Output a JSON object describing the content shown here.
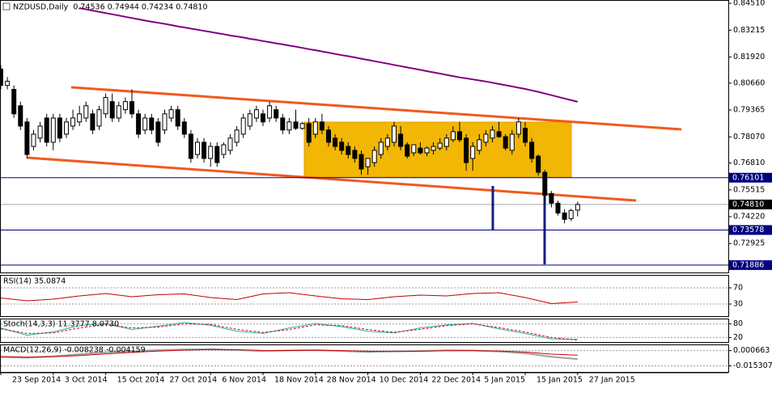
{
  "chart_data": [
    {
      "type": "candlestick",
      "title": "NZDUSD,Daily  0.74536 0.74944 0.74234 0.74810",
      "categories": [
        "23 Sep 2014",
        null,
        null,
        null,
        null,
        null,
        null,
        null,
        "3 Oct 2014",
        null,
        null,
        null,
        null,
        null,
        null,
        null,
        "15 Oct 2014",
        null,
        null,
        null,
        null,
        null,
        null,
        null,
        "27 Oct 2014",
        null,
        null,
        null,
        null,
        null,
        null,
        null,
        "6 Nov 2014",
        null,
        null,
        null,
        null,
        null,
        null,
        null,
        "18 Nov 2014",
        null,
        null,
        null,
        null,
        null,
        null,
        null,
        "28 Nov 2014",
        null,
        null,
        null,
        null,
        null,
        null,
        null,
        "10 Dec 2014",
        null,
        null,
        null,
        null,
        null,
        null,
        null,
        "22 Dec 2014",
        null,
        null,
        null,
        null,
        null,
        null,
        null,
        "5 Jan 2015",
        null,
        null,
        null,
        null,
        null,
        null,
        null,
        "15 Jan 2015",
        null,
        null,
        null,
        null,
        null,
        null,
        null,
        "27 Jan 2015"
      ],
      "open": [
        0.8134,
        0.8055,
        0.8036,
        0.7957,
        0.7879,
        0.7761,
        0.7801,
        0.7898,
        0.7781,
        0.7898,
        0.782,
        0.7859,
        0.7879,
        0.7898,
        0.7918,
        0.7859,
        0.7918,
        0.7977,
        0.7898,
        0.7938,
        0.7977,
        0.7918,
        0.784,
        0.7898,
        0.7879,
        0.784,
        0.7898,
        0.7938,
        0.7879,
        0.782,
        0.7722,
        0.7781,
        0.7703,
        0.7761,
        0.7722,
        0.7742,
        0.7781,
        0.782,
        0.7859,
        0.7898,
        0.7918,
        0.7898,
        0.7938,
        0.7898,
        0.784,
        0.7879,
        0.7848,
        0.7871,
        0.782,
        0.7879,
        0.784,
        0.7801,
        0.7781,
        0.7761,
        0.7742,
        0.7722,
        0.7663,
        0.7683,
        0.7722,
        0.7761,
        0.7781,
        0.782,
        0.7769,
        0.773,
        0.7753,
        0.773,
        0.7742,
        0.7753,
        0.7761,
        0.7793,
        0.7832,
        0.7801,
        0.7703,
        0.7742,
        0.7781,
        0.7801,
        0.7832,
        0.7808,
        0.7742,
        0.782,
        0.7848,
        0.7781,
        0.7714,
        0.7636,
        0.7534,
        0.7487,
        0.744,
        0.7413,
        0.74536
      ],
      "high": [
        0.8153,
        0.8095,
        0.8055,
        0.7977,
        0.7898,
        0.784,
        0.7879,
        0.7918,
        0.7918,
        0.7918,
        0.7898,
        0.7938,
        0.7957,
        0.7977,
        0.7938,
        0.7957,
        0.8016,
        0.8016,
        0.7977,
        0.7997,
        0.8036,
        0.7938,
        0.7918,
        0.7918,
        0.7898,
        0.7938,
        0.7957,
        0.7957,
        0.7898,
        0.784,
        0.7801,
        0.7801,
        0.7781,
        0.7781,
        0.7781,
        0.782,
        0.7859,
        0.7918,
        0.7938,
        0.7957,
        0.7938,
        0.7977,
        0.7957,
        0.7918,
        0.7898,
        0.7938,
        0.7879,
        0.7898,
        0.7898,
        0.7918,
        0.7859,
        0.782,
        0.7801,
        0.7781,
        0.7761,
        0.7742,
        0.7703,
        0.7761,
        0.7801,
        0.782,
        0.7879,
        0.7859,
        0.7781,
        0.7761,
        0.7781,
        0.7761,
        0.7781,
        0.7801,
        0.782,
        0.7859,
        0.7879,
        0.782,
        0.7781,
        0.782,
        0.784,
        0.7859,
        0.7879,
        0.782,
        0.784,
        0.7898,
        0.7879,
        0.7801,
        0.7722,
        0.7648,
        0.7546,
        0.7499,
        0.7458,
        0.746,
        0.74944
      ],
      "low": [
        0.8036,
        0.8036,
        0.7899,
        0.784,
        0.7703,
        0.7742,
        0.7781,
        0.7761,
        0.7742,
        0.7781,
        0.7801,
        0.784,
        0.7859,
        0.7879,
        0.782,
        0.784,
        0.7898,
        0.7879,
        0.7879,
        0.7918,
        0.7898,
        0.7801,
        0.782,
        0.782,
        0.7761,
        0.782,
        0.7879,
        0.784,
        0.7801,
        0.7683,
        0.7703,
        0.7683,
        0.7663,
        0.7663,
        0.7703,
        0.7722,
        0.7761,
        0.7801,
        0.784,
        0.7879,
        0.7859,
        0.7879,
        0.7879,
        0.782,
        0.782,
        0.784,
        0.784,
        0.7761,
        0.7801,
        0.782,
        0.7761,
        0.7742,
        0.7722,
        0.7703,
        0.7683,
        0.7624,
        0.7624,
        0.7663,
        0.7703,
        0.7742,
        0.7761,
        0.7742,
        0.7703,
        0.7714,
        0.7722,
        0.7714,
        0.7722,
        0.7742,
        0.7742,
        0.7781,
        0.7781,
        0.7644,
        0.7644,
        0.7722,
        0.7761,
        0.7781,
        0.7801,
        0.7742,
        0.7722,
        0.7801,
        0.7761,
        0.7683,
        0.762,
        0.7487,
        0.7467,
        0.7428,
        0.739,
        0.7401,
        0.74234
      ],
      "close": [
        0.8055,
        0.8075,
        0.7918,
        0.7859,
        0.7722,
        0.782,
        0.7859,
        0.7781,
        0.7898,
        0.7801,
        0.7879,
        0.7898,
        0.7918,
        0.7957,
        0.784,
        0.7938,
        0.7997,
        0.7898,
        0.7957,
        0.7977,
        0.7918,
        0.782,
        0.7898,
        0.784,
        0.7781,
        0.7918,
        0.7938,
        0.7859,
        0.782,
        0.7703,
        0.7781,
        0.7703,
        0.7761,
        0.7683,
        0.7769,
        0.7801,
        0.784,
        0.7898,
        0.7918,
        0.7938,
        0.7879,
        0.7957,
        0.7898,
        0.784,
        0.7879,
        0.7848,
        0.7871,
        0.7781,
        0.7879,
        0.784,
        0.7781,
        0.7761,
        0.7742,
        0.7722,
        0.7703,
        0.7652,
        0.7703,
        0.7742,
        0.7781,
        0.7801,
        0.7859,
        0.7761,
        0.7714,
        0.7769,
        0.773,
        0.7753,
        0.7761,
        0.7777,
        0.7801,
        0.7832,
        0.7793,
        0.7683,
        0.7761,
        0.7793,
        0.782,
        0.784,
        0.7808,
        0.7753,
        0.782,
        0.7879,
        0.7781,
        0.7703,
        0.7636,
        0.7526,
        0.7487,
        0.744,
        0.7409,
        0.7452,
        0.7481
      ],
      "ma": {
        "color": "#800080",
        "values": [
          null,
          null,
          null,
          null,
          null,
          null,
          null,
          null,
          null,
          null,
          null,
          null,
          0.8428,
          0.8422,
          0.8416,
          0.841,
          0.8404,
          0.8398,
          0.8392,
          0.8386,
          0.838,
          0.8374,
          0.8368,
          0.8362,
          0.8357,
          0.8352,
          0.8346,
          0.834,
          0.8335,
          0.8329,
          0.8324,
          0.8318,
          0.8313,
          0.8307,
          0.8302,
          0.8296,
          0.8291,
          0.8286,
          0.828,
          0.8275,
          0.8269,
          0.8264,
          0.8258,
          0.8253,
          0.8247,
          0.8242,
          0.8236,
          0.823,
          0.8225,
          0.8219,
          0.8213,
          0.8207,
          0.8201,
          0.8196,
          0.819,
          0.8184,
          0.8178,
          0.8172,
          0.8166,
          0.816,
          0.8154,
          0.8148,
          0.8142,
          0.8136,
          0.813,
          0.8124,
          0.8118,
          0.8112,
          0.8106,
          0.81,
          0.8094,
          0.8089,
          0.8084,
          0.8079,
          0.8074,
          0.8068,
          0.8062,
          0.8056,
          0.805,
          0.8044,
          0.8038,
          0.8031,
          0.8024,
          0.8016,
          0.8008,
          0.8,
          0.7992,
          0.7984,
          0.7976
        ]
      },
      "ylim": [
        0.7153,
        0.8467
      ],
      "yticks": [
        {
          "value": 0.8451,
          "label": "0.84510"
        },
        0.83215,
        {
          "value": 0.8192,
          "label": "0.81920"
        },
        {
          "value": 0.8066,
          "label": "0.80660"
        },
        0.79365,
        {
          "value": 0.7807,
          "label": "0.78070"
        },
        {
          "value": 0.7681,
          "label": "0.76810"
        },
        0.75515,
        {
          "value": 0.7422,
          "label": "0.74220"
        },
        0.72925
      ],
      "levels": [
        0.76101,
        {
          "value": 0.7481,
          "label": "0.74810"
        },
        0.73578,
        0.71886
      ],
      "level_colors": [
        "#000080",
        "#000000",
        "#000080",
        "#000080"
      ]
    },
    {
      "type": "line",
      "title": "RSI(14) 35.0874",
      "x": [
        0,
        4,
        8,
        12,
        16,
        20,
        24,
        28,
        32,
        36,
        40,
        44,
        48,
        52,
        56,
        60,
        64,
        68,
        72,
        76,
        80,
        84,
        88
      ],
      "series": [
        {
          "color": "#c00000",
          "values": [
            45,
            38,
            42,
            50,
            56,
            48,
            53,
            55,
            46,
            41,
            55,
            58,
            50,
            43,
            41,
            48,
            52,
            50,
            56,
            58,
            46,
            31,
            35.0874
          ]
        }
      ],
      "ylim": [
        0,
        100
      ],
      "yticks": [
        70,
        30
      ]
    },
    {
      "type": "line",
      "title": "Stoch(14,3,3) 11.3777 8.0730",
      "x": [
        0,
        4,
        8,
        12,
        16,
        20,
        24,
        28,
        32,
        36,
        40,
        44,
        48,
        52,
        56,
        60,
        64,
        68,
        72,
        76,
        80,
        84,
        88
      ],
      "series": [
        {
          "color": "#20b2aa",
          "values": [
            62,
            30,
            45,
            72,
            82,
            55,
            70,
            86,
            74,
            48,
            38,
            62,
            82,
            68,
            48,
            40,
            62,
            76,
            82,
            58,
            38,
            14,
            11.3777
          ]
        },
        {
          "color": "#e00000",
          "values": [
            58,
            38,
            40,
            62,
            78,
            62,
            66,
            80,
            78,
            56,
            42,
            55,
            76,
            72,
            55,
            43,
            56,
            72,
            80,
            64,
            44,
            20,
            8.073
          ]
        }
      ],
      "ylim": [
        0,
        100
      ],
      "yticks": [
        80,
        20
      ]
    },
    {
      "type": "line",
      "title": "MACD(12,26,9) -0.008238 -0.004159",
      "x": [
        0,
        4,
        8,
        12,
        16,
        20,
        24,
        28,
        32,
        36,
        40,
        44,
        48,
        52,
        56,
        60,
        64,
        68,
        72,
        76,
        80,
        84,
        88
      ],
      "series": [
        {
          "color": "#a0a0a0",
          "values": [
            -0.0062,
            -0.0068,
            -0.0052,
            -0.0031,
            -0.0012,
            0.0002,
            0.0012,
            0.0019,
            0.0021,
            0.0013,
            0.0002,
            0.0009,
            0.0012,
            0.0003,
            -0.0008,
            -0.0001,
            0.0003,
            0.001,
            0.0008,
            -0.0002,
            -0.0021,
            -0.0058,
            -0.008238
          ]
        },
        {
          "color": "#cc0000",
          "values": [
            -0.0055,
            -0.0062,
            -0.0058,
            -0.0045,
            -0.0028,
            -0.0012,
            0.0002,
            0.0012,
            0.0018,
            0.0016,
            0.0009,
            0.0008,
            0.001,
            0.0007,
            0.0,
            -0.0003,
            0.0,
            0.0005,
            0.0007,
            0.0003,
            -0.0008,
            -0.003,
            -0.004159
          ]
        }
      ],
      "ylim": [
        -0.0217,
        0.0063
      ],
      "yticks": [
        0.000663,
        -0.015307
      ]
    }
  ]
}
